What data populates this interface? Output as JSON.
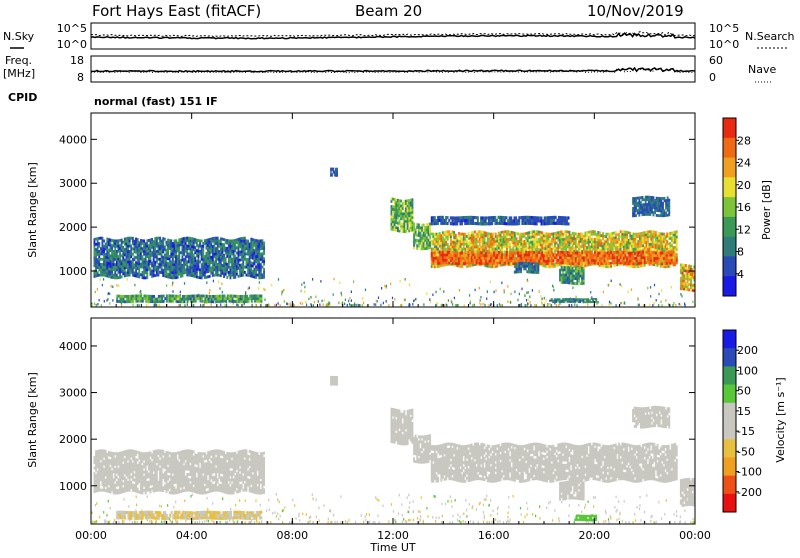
{
  "header": {
    "station": "Fort Hays East (fitACF)",
    "beam": "Beam 20",
    "date": "10/Nov/2019"
  },
  "status_panels": {
    "noise": {
      "left_label": "N.Sky",
      "right_label": "N.Search",
      "left_ticks": [
        "10^5",
        "10^0"
      ],
      "right_ticks": [
        "10^5",
        "10^0"
      ]
    },
    "freq": {
      "left_label": "Freq.",
      "left_unit": "[MHz]",
      "right_label": "Nave",
      "left_ticks": [
        "18",
        "8"
      ],
      "right_ticks": [
        "60",
        "0"
      ]
    },
    "cpid": {
      "label": "CPID",
      "value": "normal (fast) 151 IF"
    }
  },
  "chart_data": [
    {
      "type": "heatmap",
      "panel": "power",
      "ylabel": "Slant Range [km]",
      "yticks": [
        "4000",
        "3000",
        "2000",
        "1000"
      ],
      "ylim": [
        180,
        4600
      ],
      "xlim": [
        0,
        24
      ],
      "xticks": [
        0,
        4,
        8,
        12,
        16,
        20,
        24
      ],
      "colorbar": {
        "label": "Power [dB]",
        "ticks": [
          "28",
          "24",
          "20",
          "16",
          "12",
          "8",
          "4"
        ],
        "range": [
          0,
          32
        ],
        "colors": [
          "#1a1ae6",
          "#2a4ab8",
          "#2e7d7a",
          "#3a9a55",
          "#7cc43a",
          "#e8e030",
          "#f0a020",
          "#ef6a15",
          "#e82a10"
        ]
      },
      "regions": [
        {
          "t0": 0.1,
          "t1": 6.9,
          "r0": 850,
          "r1": 1750,
          "level": 8,
          "variability": 6
        },
        {
          "t0": 9.5,
          "t1": 9.8,
          "r0": 3150,
          "r1": 3350,
          "level": 7,
          "variability": 2
        },
        {
          "t0": 11.9,
          "t1": 12.8,
          "r0": 1900,
          "r1": 2650,
          "level": 14,
          "variability": 6
        },
        {
          "t0": 12.8,
          "t1": 13.5,
          "r0": 1500,
          "r1": 2100,
          "level": 15,
          "variability": 6
        },
        {
          "t0": 13.5,
          "t1": 23.3,
          "r0": 1100,
          "r1": 1900,
          "level": 20,
          "variability": 7
        },
        {
          "t0": 13.5,
          "t1": 23.3,
          "r0": 1150,
          "r1": 1450,
          "level": 27,
          "variability": 4
        },
        {
          "t0": 16.8,
          "t1": 17.8,
          "r0": 950,
          "r1": 1200,
          "level": 9,
          "variability": 4
        },
        {
          "t0": 18.6,
          "t1": 19.6,
          "r0": 700,
          "r1": 1100,
          "level": 11,
          "variability": 5
        },
        {
          "t0": 23.4,
          "t1": 24.0,
          "r0": 550,
          "r1": 1150,
          "level": 22,
          "variability": 8
        },
        {
          "t0": 1.0,
          "t1": 6.8,
          "r0": 280,
          "r1": 460,
          "level": 12,
          "variability": 6
        },
        {
          "t0": 18.2,
          "t1": 20.1,
          "r0": 280,
          "r1": 380,
          "level": 10,
          "variability": 4
        },
        {
          "t0": 21.5,
          "t1": 23.0,
          "r0": 2250,
          "r1": 2700,
          "level": 7,
          "variability": 3
        },
        {
          "t0": 13.5,
          "t1": 19.0,
          "r0": 2050,
          "r1": 2250,
          "level": 6,
          "variability": 3
        }
      ]
    },
    {
      "type": "heatmap",
      "panel": "velocity",
      "ylabel": "Slant Range [km]",
      "yticks": [
        "4000",
        "3000",
        "2000",
        "1000"
      ],
      "ylim": [
        180,
        4600
      ],
      "xlim": [
        0,
        24
      ],
      "xticks": [
        0,
        4,
        8,
        12,
        16,
        20,
        24
      ],
      "xticklabels": [
        "00:00",
        "04:00",
        "08:00",
        "12:00",
        "16:00",
        "20:00",
        "00:00"
      ],
      "xlabel": "Time UT",
      "colorbar": {
        "label": "Velocity [m s⁻¹]",
        "ticks": [
          "200",
          "100",
          "50",
          "15",
          "-15",
          "-50",
          "-100",
          "-200"
        ],
        "range": [
          -250,
          250
        ],
        "colors": [
          "#e81010",
          "#ef5015",
          "#f0a020",
          "#e8c040",
          "#c8c8c0",
          "#c8c8c0",
          "#58c838",
          "#3a9a55",
          "#2a4ab8",
          "#1a1ae6"
        ]
      },
      "regions": [
        {
          "t0": 0.1,
          "t1": 6.9,
          "r0": 850,
          "r1": 1750,
          "level": 0,
          "variability": 20
        },
        {
          "t0": 9.5,
          "t1": 9.8,
          "r0": 3150,
          "r1": 3350,
          "level": 30,
          "variability": 15
        },
        {
          "t0": 11.9,
          "t1": 12.8,
          "r0": 1900,
          "r1": 2650,
          "level": 0,
          "variability": 8
        },
        {
          "t0": 12.8,
          "t1": 13.5,
          "r0": 1500,
          "r1": 2100,
          "level": 0,
          "variability": 8
        },
        {
          "t0": 13.5,
          "t1": 23.3,
          "r0": 1100,
          "r1": 1900,
          "level": 0,
          "variability": 10
        },
        {
          "t0": 18.6,
          "t1": 19.6,
          "r0": 700,
          "r1": 1100,
          "level": 0,
          "variability": 40
        },
        {
          "t0": 23.4,
          "t1": 24.0,
          "r0": 550,
          "r1": 1150,
          "level": 0,
          "variability": 10
        },
        {
          "t0": 1.0,
          "t1": 6.8,
          "r0": 280,
          "r1": 460,
          "level": -50,
          "variability": 30
        },
        {
          "t0": 19.2,
          "t1": 20.1,
          "r0": 250,
          "r1": 380,
          "level": 60,
          "variability": 10
        },
        {
          "t0": 21.5,
          "t1": 23.0,
          "r0": 2250,
          "r1": 2700,
          "level": 0,
          "variability": 15
        }
      ]
    }
  ]
}
